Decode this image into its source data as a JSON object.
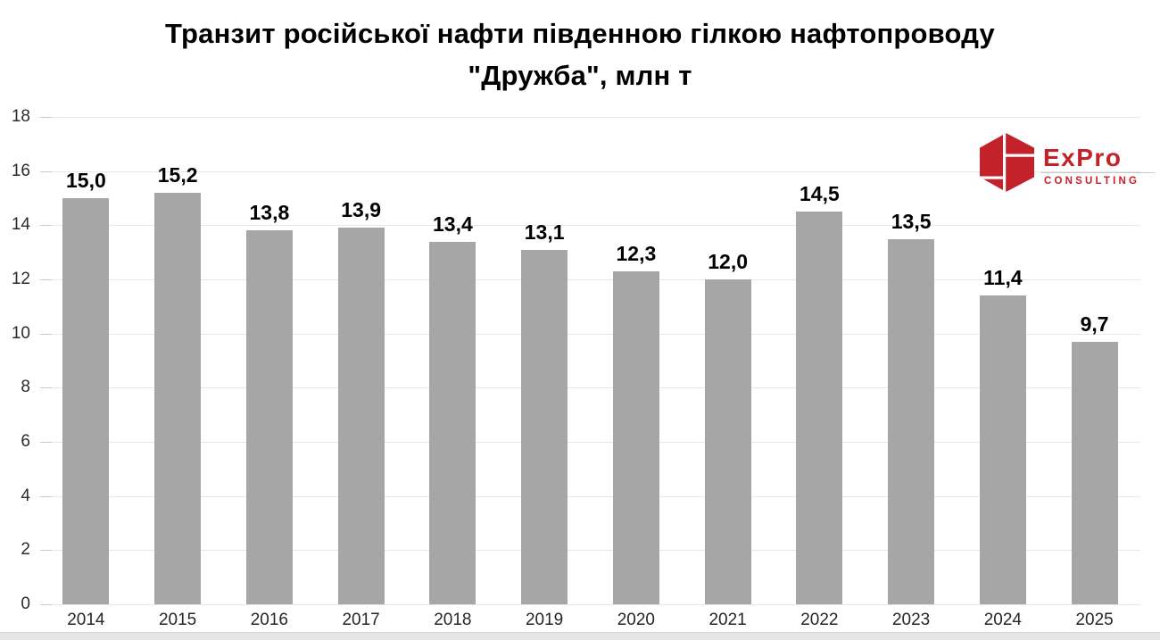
{
  "title": {
    "line1": "Транзит російської нафти південною гілкою нафтопроводу",
    "line2": "\"Дружба\", млн т"
  },
  "logo": {
    "wordmark": "ExPro",
    "subtitle": "CONSULTING",
    "brand_color": "#c4222a"
  },
  "chart_data": {
    "type": "bar",
    "title": "Транзит російської нафти південною гілкою нафтопроводу \"Дружба\", млн т",
    "categories": [
      "2014",
      "2015",
      "2016",
      "2017",
      "2018",
      "2019",
      "2020",
      "2021",
      "2022",
      "2023",
      "2024",
      "2025"
    ],
    "values": [
      15.0,
      15.2,
      13.8,
      13.9,
      13.4,
      13.1,
      12.3,
      12.0,
      14.5,
      13.5,
      11.4,
      9.7
    ],
    "value_labels": [
      "15,0",
      "15,2",
      "13,8",
      "13,9",
      "13,4",
      "13,1",
      "12,3",
      "12,0",
      "14,5",
      "13,5",
      "11,4",
      "9,7"
    ],
    "xlabel": "",
    "ylabel": "",
    "ylim": [
      0,
      18
    ],
    "yticks": [
      0,
      2,
      4,
      6,
      8,
      10,
      12,
      14,
      16,
      18
    ],
    "grid": true,
    "legend": false,
    "bar_color": "#a6a6a6",
    "gridline_color": "#e7e7e7"
  }
}
